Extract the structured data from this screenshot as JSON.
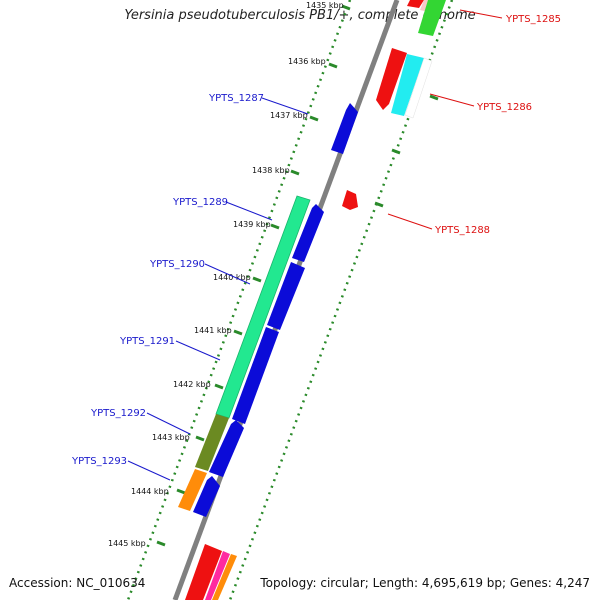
{
  "title": "Yersinia pseudotuberculosis PB1/+, complete genome",
  "footer": {
    "accession": "Accession: NC_010634",
    "summary": "Topology: circular; Length: 4,695,619 bp; Genes: 4,247"
  },
  "colors": {
    "backbone": "#808080",
    "tick_dots": "#2a8a2a",
    "left_label": "#1a1acc",
    "right_label": "#dd1111",
    "gene_blue": "#0b0bd8",
    "gene_green": "#22e890",
    "gene_red": "#ee1111",
    "gene_cyan": "#22ecf0",
    "gene_olive": "#6b8a22",
    "gene_orange": "#ff8c0a",
    "gene_pink": "#ff2aa0"
  },
  "ticks": [
    "1435 kbp",
    "1436 kbp",
    "1437 kbp",
    "1438 kbp",
    "1439 kbp",
    "1440 kbp",
    "1441 kbp",
    "1442 kbp",
    "1443 kbp",
    "1444 kbp",
    "1445 kbp"
  ],
  "left_labels": [
    "YPTS_1287",
    "YPTS_1289",
    "YPTS_1290",
    "YPTS_1291",
    "YPTS_1292",
    "YPTS_1293"
  ],
  "right_labels": [
    "YPTS_1285",
    "YPTS_1286",
    "YPTS_1288"
  ]
}
